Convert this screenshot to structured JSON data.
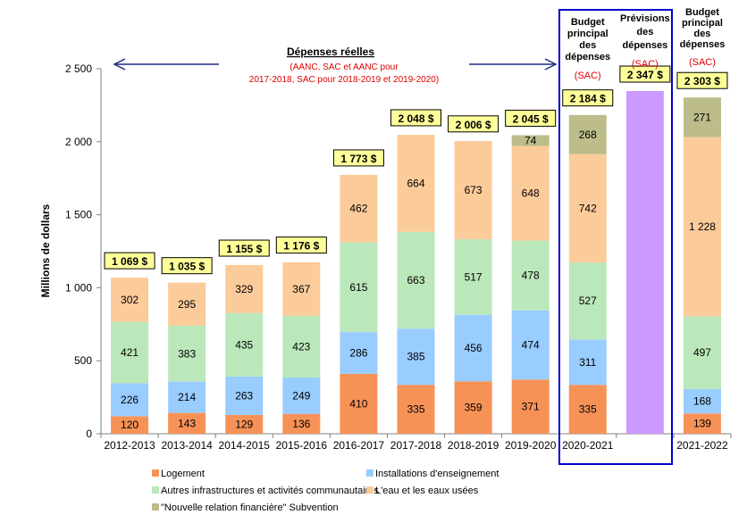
{
  "chart_data": {
    "type": "bar",
    "stacked": true,
    "ylabel": "Millions de dollars",
    "ylim": [
      0,
      2500
    ],
    "yticks": [
      0,
      500,
      1000,
      1500,
      2000,
      2500
    ],
    "ytick_labels": [
      "0",
      "500",
      "1 000",
      "1 500",
      "2 000",
      "2 500"
    ],
    "categories": [
      "2012-2013",
      "2013-2014",
      "2014-2015",
      "2015-2016",
      "2016-2017",
      "2017-2018",
      "2018-2019",
      "2019-2020",
      "2020-2021",
      "",
      "2021-2022"
    ],
    "series": [
      {
        "name": "Logement",
        "color": "#F79257",
        "values": [
          120,
          143,
          129,
          136,
          410,
          335,
          359,
          371,
          335,
          null,
          139
        ]
      },
      {
        "name": "Installations d'enseignement",
        "color": "#99CCFF",
        "values": [
          226,
          214,
          263,
          249,
          286,
          385,
          456,
          474,
          311,
          null,
          168
        ]
      },
      {
        "name": "Autres infrastructures et activités communautaires",
        "color": "#BBE8BB",
        "values": [
          421,
          383,
          435,
          423,
          615,
          663,
          517,
          478,
          527,
          null,
          497
        ]
      },
      {
        "name": "L'eau et les eaux usées",
        "color": "#FCCB9A",
        "values": [
          302,
          295,
          329,
          367,
          462,
          664,
          673,
          648,
          742,
          null,
          1228
        ]
      },
      {
        "name": "\"Nouvelle relation financière\" Subvention",
        "color": "#BDBD8C",
        "values": [
          null,
          null,
          null,
          null,
          null,
          null,
          null,
          74,
          268,
          null,
          271
        ]
      },
      {
        "name": "Prévisions des dépenses",
        "color": "#CC99FF",
        "values": [
          null,
          null,
          null,
          null,
          null,
          null,
          null,
          null,
          null,
          2347,
          null
        ],
        "in_legend": false
      }
    ],
    "totals": [
      1069,
      1035,
      1155,
      1176,
      1773,
      2048,
      2006,
      2045,
      2184,
      2347,
      2303
    ],
    "total_labels": [
      "1 069 $",
      "1 035 $",
      "1 155 $",
      "1 176 $",
      "1 773 $",
      "2 048 $",
      "2 006 $",
      "2 045 $",
      "2 184 $",
      "2 347 $",
      "2 303 $"
    ],
    "segment_labels": {
      "Logement": [
        "120",
        "143",
        "129",
        "136",
        "410",
        "335",
        "359",
        "371",
        "335",
        "",
        "139"
      ],
      "Installations d'enseignement": [
        "226",
        "214",
        "263",
        "249",
        "286",
        "385",
        "456",
        "474",
        "311",
        "",
        "168"
      ],
      "Autres infrastructures et activités communautaires": [
        "421",
        "383",
        "435",
        "423",
        "615",
        "663",
        "517",
        "478",
        "527",
        "",
        "497"
      ],
      "L'eau et les eaux usées": [
        "302",
        "295",
        "329",
        "367",
        "462",
        "664",
        "673",
        "648",
        "742",
        "",
        "1 228"
      ],
      "\"Nouvelle relation financière\" Subvention": [
        "",
        "",
        "",
        "",
        "",
        "",
        "",
        "74",
        "268",
        "",
        "271"
      ]
    },
    "annotations": {
      "actual_title": "Dépenses réelles",
      "actual_sub1": "(AANC, SAC et AANC pour",
      "actual_sub2": "2017-2018, SAC pour 2018-2019 et 2019-2020)",
      "budget1": [
        "Budget",
        "principal",
        "des",
        "dépenses"
      ],
      "budget1_org": "(SAC)",
      "forecast": [
        "Prévisions",
        "des",
        "dépenses"
      ],
      "forecast_org": "(SAC)",
      "budget2": [
        "Budget",
        "principal",
        "des",
        "dépenses"
      ],
      "budget2_org": "(SAC)"
    },
    "legend": "bottom"
  }
}
